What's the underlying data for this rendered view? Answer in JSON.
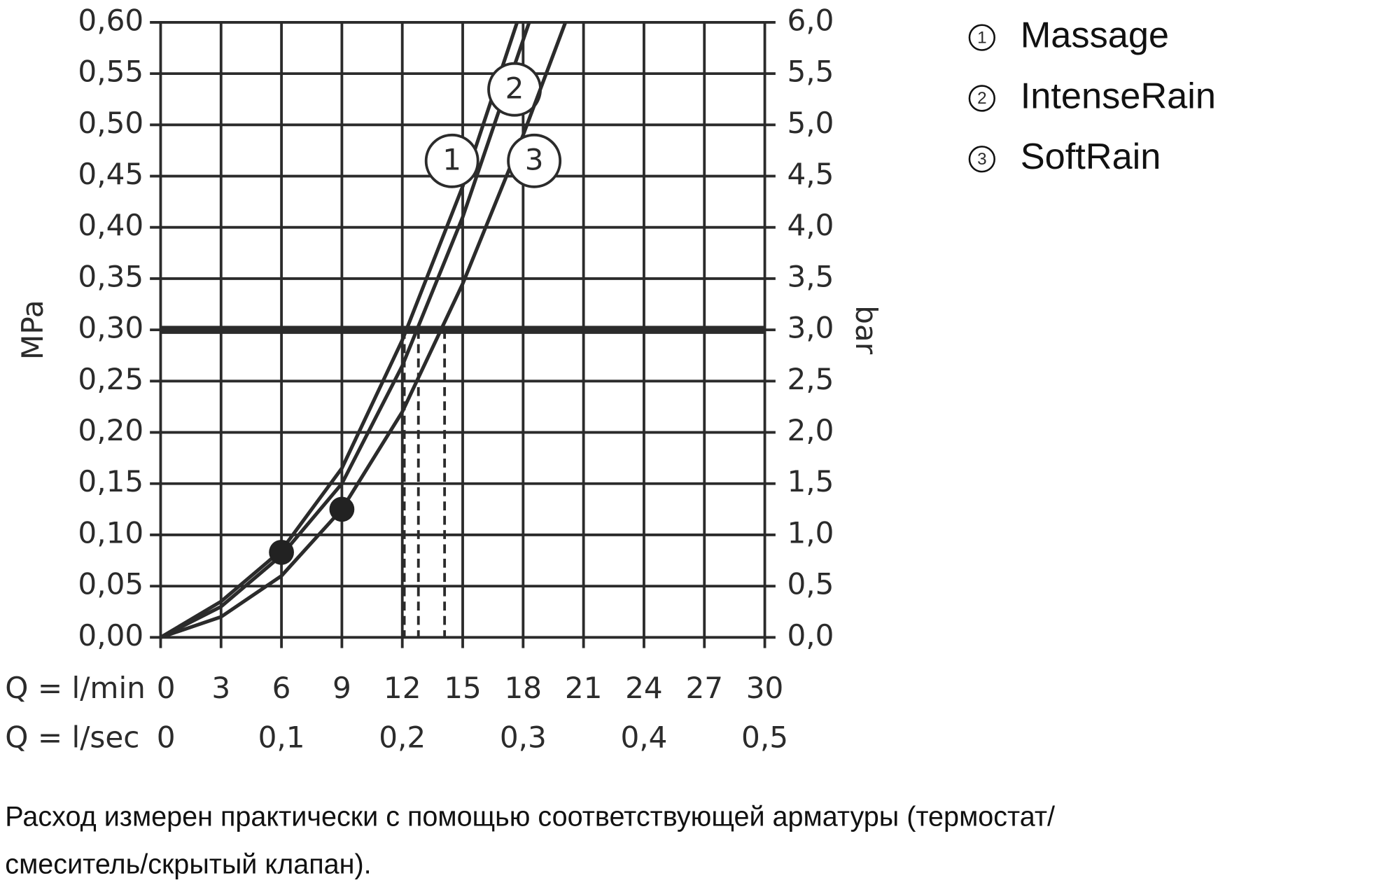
{
  "chart_data": {
    "type": "line",
    "x_label": "Q = l/min",
    "x2_label": "Q = l/sec",
    "y_label": "MPa",
    "y2_label": "bar",
    "xlim": [
      0,
      30
    ],
    "xticks": [
      0,
      3,
      6,
      9,
      12,
      15,
      18,
      21,
      24,
      27,
      30
    ],
    "x2ticks": [
      0,
      {
        "value": 6,
        "label": "0,1"
      },
      {
        "value": 12,
        "label": "0,2"
      },
      {
        "value": 18,
        "label": "0,3"
      },
      {
        "value": 24,
        "label": "0,4"
      },
      {
        "value": 30,
        "label": "0,5"
      }
    ],
    "ylim": [
      0,
      0.6
    ],
    "yticks": [
      {
        "value": 0,
        "label": "0,00"
      },
      {
        "value": 0.05,
        "label": "0,05"
      },
      {
        "value": 0.1,
        "label": "0,10"
      },
      {
        "value": 0.15,
        "label": "0,15"
      },
      {
        "value": 0.2,
        "label": "0,20"
      },
      {
        "value": 0.25,
        "label": "0,25"
      },
      {
        "value": 0.3,
        "label": "0,30"
      },
      {
        "value": 0.35,
        "label": "0,35"
      },
      {
        "value": 0.4,
        "label": "0,40"
      },
      {
        "value": 0.45,
        "label": "0,45"
      },
      {
        "value": 0.5,
        "label": "0,50"
      },
      {
        "value": 0.55,
        "label": "0,55"
      },
      {
        "value": 0.6,
        "label": "0,60"
      }
    ],
    "y2lim": [
      0,
      6
    ],
    "y2ticks": [
      {
        "value": 0,
        "label": "0,0"
      },
      {
        "value": 0.5,
        "label": "0,5"
      },
      {
        "value": 1,
        "label": "1,0"
      },
      {
        "value": 1.5,
        "label": "1,5"
      },
      {
        "value": 2,
        "label": "2,0"
      },
      {
        "value": 2.5,
        "label": "2,5"
      },
      {
        "value": 3,
        "label": "3,0"
      },
      {
        "value": 3.5,
        "label": "3,5"
      },
      {
        "value": 4,
        "label": "4,0"
      },
      {
        "value": 4.5,
        "label": "4,5"
      },
      {
        "value": 5,
        "label": "5,0"
      },
      {
        "value": 5.5,
        "label": "5,5"
      },
      {
        "value": 6,
        "label": "6,0"
      }
    ],
    "grid": true,
    "reference_y": 0.3,
    "drop_lines": [
      12.1,
      12.8,
      14.1
    ],
    "dots": {
      "x": [
        6,
        9
      ],
      "values": [
        0.083,
        0.125
      ]
    },
    "series": [
      {
        "name": "Massage",
        "label": "1",
        "color": "#2b2b2b",
        "x": [
          0,
          3,
          6,
          9,
          12,
          15,
          17.7
        ],
        "values": [
          0,
          0.035,
          0.085,
          0.165,
          0.29,
          0.44,
          0.6
        ]
      },
      {
        "name": "IntenseRain",
        "label": "2",
        "color": "#2b2b2b",
        "x": [
          0,
          3,
          6,
          9,
          12,
          15,
          18.3
        ],
        "values": [
          0,
          0.03,
          0.08,
          0.15,
          0.265,
          0.41,
          0.6
        ]
      },
      {
        "name": "SoftRain",
        "label": "3",
        "color": "#2b2b2b",
        "x": [
          0,
          3,
          6,
          9,
          12,
          15,
          18,
          20.1
        ],
        "values": [
          0,
          0.02,
          0.06,
          0.125,
          0.22,
          0.345,
          0.49,
          0.6
        ]
      }
    ],
    "notes": [
      "Расход измерен практически с помощью соответствующей арматуры (термостат/",
      "смеситель/скрытый клапан)."
    ]
  }
}
